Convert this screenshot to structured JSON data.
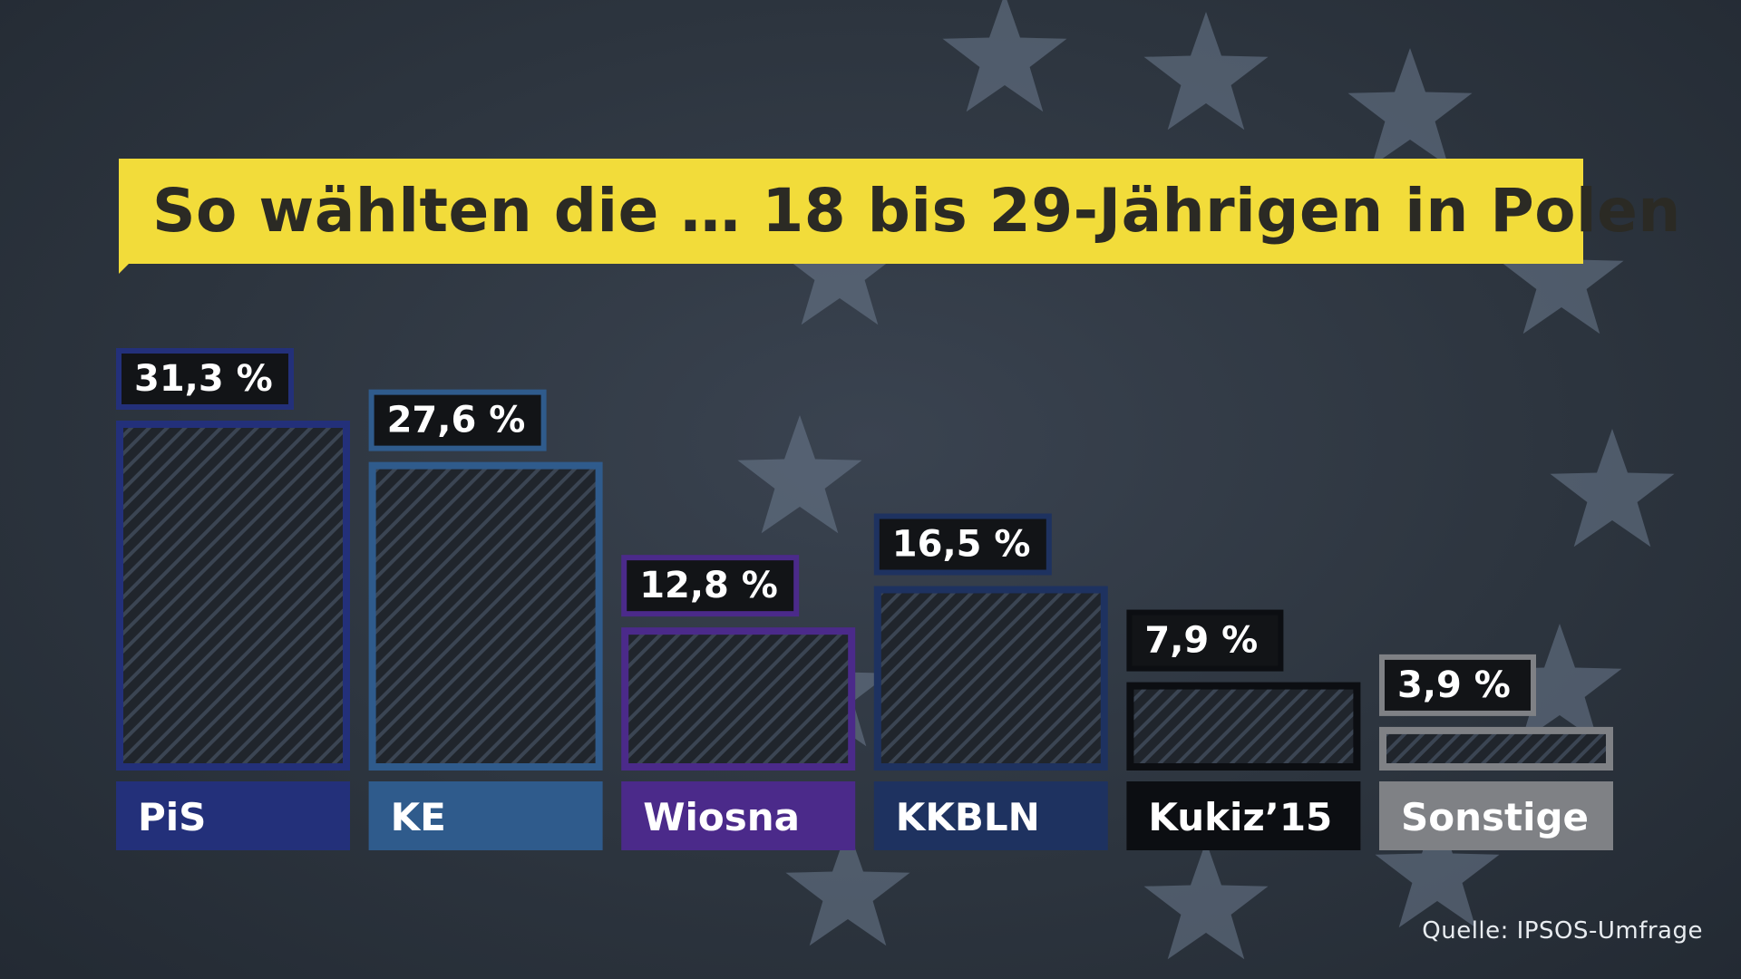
{
  "title": "So wählten die … 18 bis 29-Jährigen in Polen",
  "source": "Quelle: IPSOS-Umfrage",
  "colors": {
    "title_bg": "#f2dc3a",
    "title_text": "#2b2a24",
    "background": "#2d353f",
    "stars": "#6d7c90"
  },
  "chart_data": {
    "type": "bar",
    "categories": [
      "PiS",
      "KE",
      "Wiosna",
      "KKBLN",
      "Kukiz’15",
      "Sonstige"
    ],
    "values": [
      31.3,
      27.6,
      12.8,
      16.5,
      7.9,
      3.9
    ],
    "value_labels": [
      "31,3 %",
      "27,6 %",
      "12,8 %",
      "16,5 %",
      "7,9 %",
      "3,9 %"
    ],
    "colors": [
      "#23307a",
      "#2f5b8c",
      "#4b2a8a",
      "#1e3260",
      "#0c0e12",
      "#7f8185"
    ],
    "title": "So wählten die … 18 bis 29-Jährigen in Polen",
    "xlabel": "",
    "ylabel": "",
    "grid": false,
    "legend": "none"
  }
}
